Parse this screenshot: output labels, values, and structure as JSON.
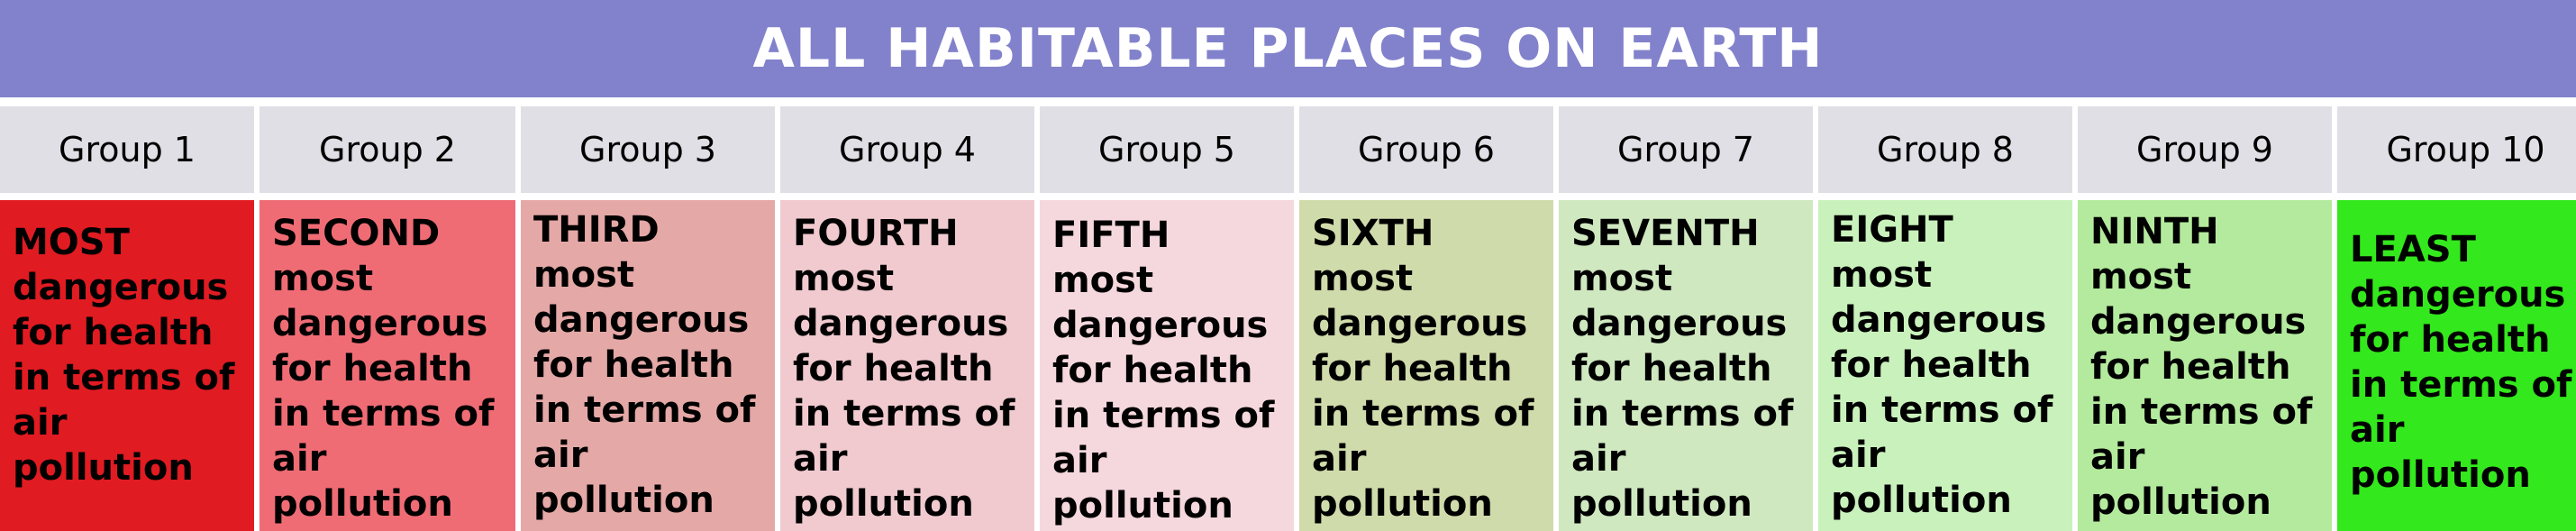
{
  "title": "ALL HABITABLE PLACES ON EARTH",
  "groups": [
    {
      "label": "Group 1",
      "rank": "MOST",
      "desc": "dangerous for health in terms of air pollution",
      "color": "#e11b22"
    },
    {
      "label": "Group 2",
      "rank": "SECOND",
      "desc": "most dangerous for health in terms of air pollution",
      "color": "#f06c75"
    },
    {
      "label": "Group 3",
      "rank": "THIRD",
      "desc": "most dangerous for health in terms of air pollution",
      "color": "#e4a8a6"
    },
    {
      "label": "Group 4",
      "rank": "FOURTH",
      "desc": "most dangerous for health in terms of air pollution",
      "color": "#f0cacf"
    },
    {
      "label": "Group 5",
      "rank": "FIFTH",
      "desc": "most dangerous for health in terms of air pollution",
      "color": "#f5d8dd"
    },
    {
      "label": "Group 6",
      "rank": "SIXTH",
      "desc": "most dangerous for health in terms of air pollution",
      "color": "#d0dbab"
    },
    {
      "label": "Group 7",
      "rank": "SEVENTH",
      "desc": "most dangerous for health in terms of air pollution",
      "color": "#cfe8c0"
    },
    {
      "label": "Group 8",
      "rank": "EIGHT",
      "desc": "most dangerous for health in terms of air pollution",
      "color": "#c9f1bc"
    },
    {
      "label": "Group 9",
      "rank": "NINTH",
      "desc": "most dangerous for health in terms of air pollution",
      "color": "#b4ea9d"
    },
    {
      "label": "Group 10",
      "rank": "LEAST",
      "desc": "dangerous for health in terms of air pollution",
      "color": "#33e81c"
    }
  ]
}
